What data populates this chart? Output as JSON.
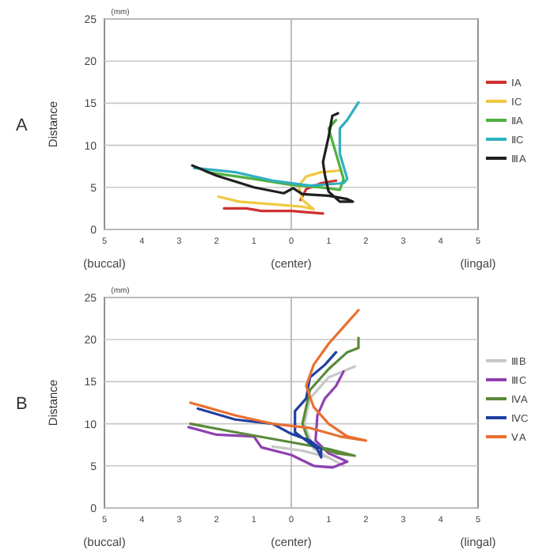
{
  "chart_data": [
    {
      "type": "line",
      "title": "A",
      "ylabel": "Distance",
      "annotations": [
        "(mm)",
        "(buccal)",
        "(center)",
        "(lingal)"
      ],
      "xlim": [
        -5,
        5
      ],
      "xticks": [
        {
          "value": -5,
          "label": "5"
        },
        {
          "value": -4,
          "label": "4"
        },
        {
          "value": -3,
          "label": "3"
        },
        {
          "value": -2,
          "label": "2"
        },
        {
          "value": -1,
          "label": "1"
        },
        0,
        1,
        2,
        3,
        4,
        5
      ],
      "ylim": [
        0,
        25
      ],
      "yticks": [
        0,
        5,
        10,
        15,
        20,
        25
      ],
      "grid": "y",
      "ref_lines": [
        {
          "axis": "x",
          "value": 0,
          "color": "#b0b0b0"
        }
      ],
      "legend": "right",
      "marker": "none",
      "line_style": "solid",
      "series": [
        {
          "name": "ⅠA",
          "color": "#d03030",
          "x": [
            -1.8,
            -1.2,
            -0.8,
            0,
            0.85,
            null,
            0.25,
            0.4,
            0.8,
            1.2
          ],
          "values": [
            2.5,
            2.5,
            2.2,
            2.2,
            1.9,
            null,
            3.5,
            4.8,
            5.5,
            5.8
          ]
        },
        {
          "name": "ⅠC",
          "color": "#f0c840",
          "x": [
            -1.95,
            -1.4,
            -0.5,
            0.3,
            0.6,
            0.3,
            0.2,
            0.4,
            0.8,
            1.3
          ],
          "values": [
            3.9,
            3.3,
            3.0,
            2.7,
            2.4,
            3.5,
            5.2,
            6.3,
            6.8,
            7.0
          ]
        },
        {
          "name": "ⅡA",
          "color": "#50b040",
          "x": [
            -2.25,
            -1,
            0,
            0.8,
            1.3,
            1.4,
            1.2,
            1.0,
            1.2
          ],
          "values": [
            6.8,
            6,
            5.3,
            5,
            4.7,
            6,
            9,
            12,
            13
          ]
        },
        {
          "name": "ⅡC",
          "color": "#30b0c0",
          "x": [
            -2.6,
            -1.5,
            -0.5,
            0.5,
            1.4,
            1.5,
            1.3,
            1.3,
            1.5,
            1.8
          ],
          "values": [
            7.3,
            6.8,
            5.8,
            5.2,
            5.5,
            6,
            9,
            12,
            13,
            15.1
          ]
        },
        {
          "name": "ⅢA",
          "color": "#202020",
          "x": [
            -2.65,
            -2,
            -1,
            -0.2,
            0.05,
            0.3,
            1.0,
            1.5,
            1.65,
            1.3,
            1.0,
            0.9,
            0.85,
            1.0,
            1.1,
            1.25
          ],
          "values": [
            7.6,
            6.4,
            5,
            4.3,
            4.9,
            4.2,
            4.0,
            3.6,
            3.3,
            3.3,
            4.5,
            6.5,
            8,
            11,
            13.5,
            13.8
          ]
        }
      ]
    },
    {
      "type": "line",
      "title": "B",
      "ylabel": "Distance",
      "annotations": [
        "(mm)",
        "(buccal)",
        "(center)",
        "(lingal)"
      ],
      "xlim": [
        -5,
        5
      ],
      "xticks": [
        {
          "value": -5,
          "label": "5"
        },
        {
          "value": -4,
          "label": "4"
        },
        {
          "value": -3,
          "label": "3"
        },
        {
          "value": -2,
          "label": "2"
        },
        {
          "value": -1,
          "label": "1"
        },
        0,
        1,
        2,
        3,
        4,
        5
      ],
      "ylim": [
        0,
        25
      ],
      "yticks": [
        0,
        5,
        10,
        15,
        20,
        25
      ],
      "grid": "y",
      "ref_lines": [
        {
          "axis": "x",
          "value": 0,
          "color": "#b0b0b0"
        }
      ],
      "legend": "right",
      "marker": "none",
      "line_style": "solid",
      "series": [
        {
          "name": "ⅢB",
          "color": "#c8c8c8",
          "x": [
            -0.5,
            0.3,
            1.0,
            1.4,
            0.6,
            0.35,
            0.5,
            1.0,
            1.7
          ],
          "values": [
            7.3,
            6.8,
            6,
            5,
            7,
            10,
            13,
            15.5,
            16.8
          ]
        },
        {
          "name": "ⅢC",
          "color": "#9040b0",
          "x": [
            -2.75,
            -2,
            -1,
            -0.8,
            0,
            0.6,
            1.1,
            1.5,
            1.0,
            0.65,
            0.7,
            0.9,
            1.2,
            1.4
          ],
          "values": [
            9.6,
            8.7,
            8.5,
            7.2,
            6.3,
            5,
            4.8,
            5.5,
            6.5,
            8,
            11,
            13,
            14.5,
            16.2
          ]
        },
        {
          "name": "ⅣA",
          "color": "#5a8a3a",
          "x": [
            -2.7,
            -1.5,
            0,
            1,
            1.7,
            1.2,
            0.5,
            0.3,
            0.5,
            1,
            1.5,
            1.8,
            1.8
          ],
          "values": [
            10,
            9,
            7.8,
            7,
            6.2,
            6.5,
            7.5,
            10,
            14,
            16.5,
            18.5,
            19,
            20.2
          ]
        },
        {
          "name": "ⅣC",
          "color": "#2040a0",
          "x": [
            -2.5,
            -1.5,
            -0.5,
            0,
            0.5,
            0.8,
            0.8,
            0.7,
            0.1,
            0.1,
            0.4,
            0.5,
            0.9,
            1.2
          ],
          "values": [
            11.8,
            10.5,
            10,
            8.8,
            8,
            7,
            6,
            7,
            9,
            11.5,
            13,
            15.5,
            17,
            18.5
          ]
        },
        {
          "name": "ⅤA",
          "color": "#e87030",
          "x": [
            -2.7,
            -1.5,
            -0.5,
            0.5,
            1.3,
            2,
            1.5,
            1,
            0.6,
            0.4,
            0.6,
            1,
            1.5,
            1.8
          ],
          "values": [
            12.5,
            11,
            10,
            9.5,
            8.5,
            8,
            8.5,
            10,
            12,
            14.5,
            17,
            19.5,
            22,
            23.5
          ]
        }
      ]
    }
  ]
}
